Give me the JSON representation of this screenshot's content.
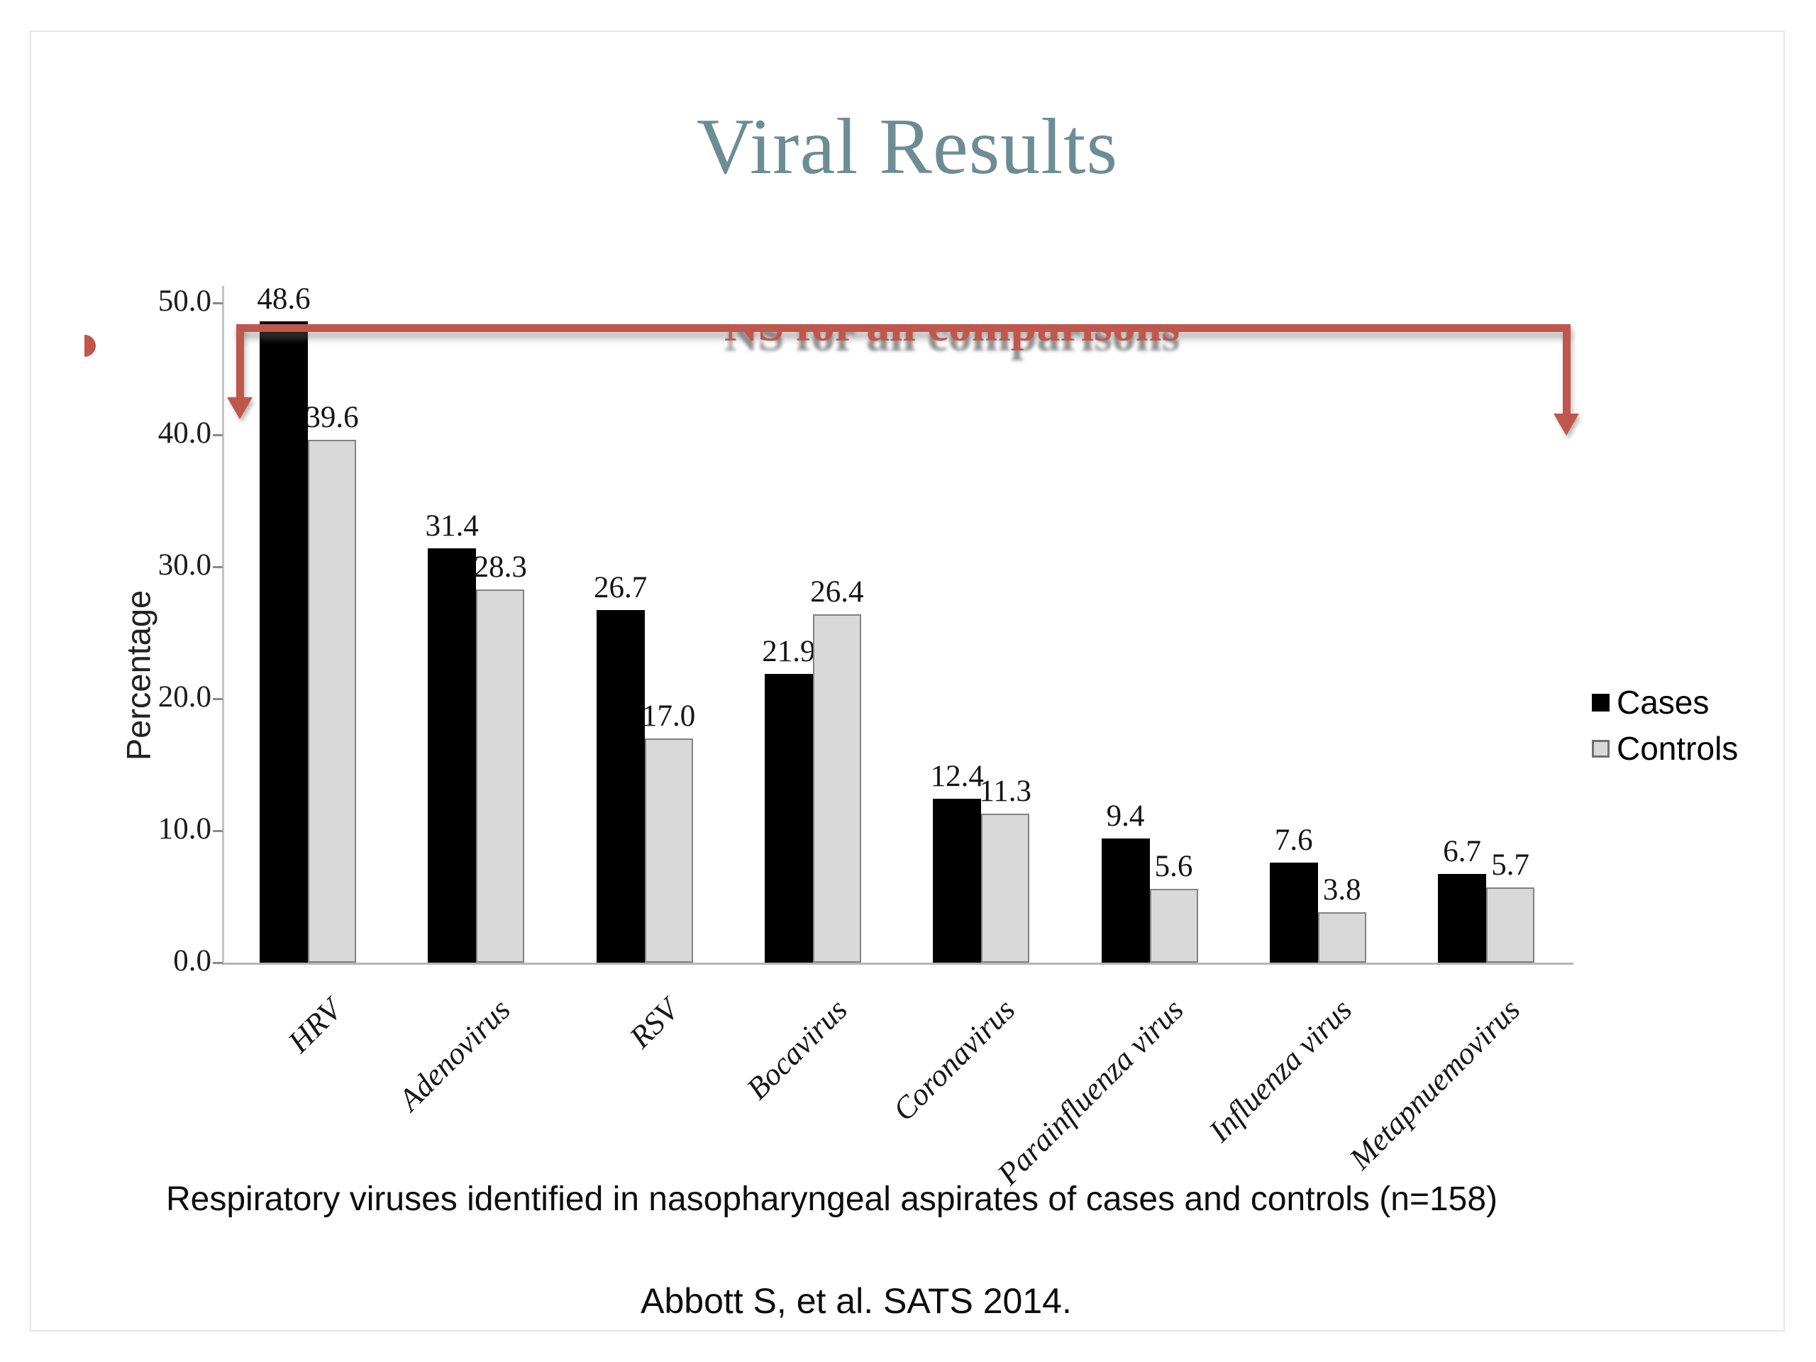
{
  "slide": {
    "title": "Viral Results",
    "title_color": "#6d8d95",
    "caption": "Respiratory viruses identified in nasopharyngeal aspirates of cases and controls (n=158)",
    "citation": "Abbott S, et al. SATS 2014."
  },
  "annotation": {
    "text": "NS for all comparisons",
    "color": "#c1574c",
    "shape": "bracket line across both end bars with downward arrows at each end"
  },
  "chart_data": {
    "type": "bar",
    "title": "",
    "categories": [
      "HRV",
      "Adenovirus",
      "RSV",
      "Bocavirus",
      "Coronavirus",
      "Parainfluenza virus",
      "Influenza virus",
      "Metapnuemovirus"
    ],
    "series": [
      {
        "name": "Cases",
        "color": "#000000",
        "values": [
          48.6,
          31.4,
          26.7,
          21.9,
          12.4,
          9.4,
          7.6,
          6.7
        ]
      },
      {
        "name": "Controls",
        "color": "#d9d9d9",
        "border_color": "#828282",
        "values": [
          39.6,
          28.3,
          17.0,
          26.4,
          11.3,
          5.6,
          3.8,
          5.7
        ]
      }
    ],
    "xlabel": "",
    "ylabel": "Percentage",
    "ylim": [
      0,
      50
    ],
    "ytick_step": 10,
    "ytick_labels": [
      "0.0",
      "10.0",
      "20.0",
      "30.0",
      "40.0",
      "50.0"
    ],
    "grid": false,
    "legend_position": "right",
    "value_labels": true
  }
}
